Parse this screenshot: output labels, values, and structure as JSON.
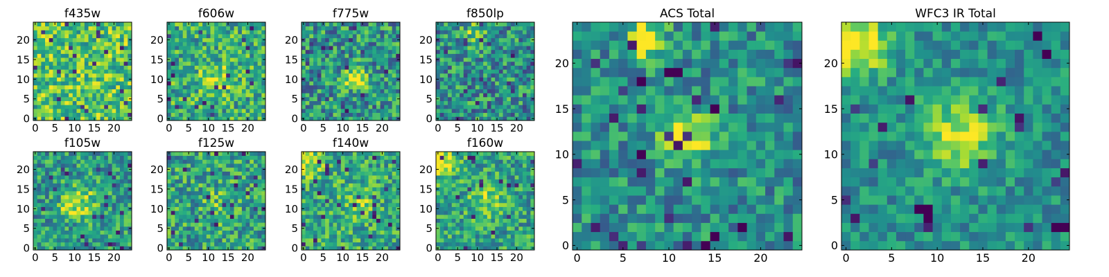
{
  "chart_data": [
    {
      "type": "heatmap",
      "title": "f435w",
      "xticks": [
        "0",
        "5",
        "10",
        "15",
        "20"
      ],
      "yticks": [
        "0",
        "5",
        "10",
        "15",
        "20"
      ],
      "xlim": [
        0,
        25
      ],
      "ylim": [
        0,
        25
      ],
      "grid": "25x25",
      "colormap": "viridis"
    },
    {
      "type": "heatmap",
      "title": "f606w",
      "xticks": [
        "0",
        "5",
        "10",
        "15",
        "20"
      ],
      "yticks": [
        "0",
        "5",
        "10",
        "15",
        "20"
      ],
      "xlim": [
        0,
        25
      ],
      "ylim": [
        0,
        25
      ],
      "grid": "25x25",
      "colormap": "viridis"
    },
    {
      "type": "heatmap",
      "title": "f775w",
      "xticks": [
        "0",
        "5",
        "10",
        "15",
        "20"
      ],
      "yticks": [
        "0",
        "5",
        "10",
        "15",
        "20"
      ],
      "xlim": [
        0,
        25
      ],
      "ylim": [
        0,
        25
      ],
      "grid": "25x25",
      "colormap": "viridis"
    },
    {
      "type": "heatmap",
      "title": "f850lp",
      "xticks": [
        "0",
        "5",
        "10",
        "15",
        "20"
      ],
      "yticks": [
        "0",
        "5",
        "10",
        "15",
        "20"
      ],
      "xlim": [
        0,
        25
      ],
      "ylim": [
        0,
        25
      ],
      "grid": "25x25",
      "colormap": "viridis"
    },
    {
      "type": "heatmap",
      "title": "f105w",
      "xticks": [
        "0",
        "5",
        "10",
        "15",
        "20"
      ],
      "yticks": [
        "0",
        "5",
        "10",
        "15",
        "20"
      ],
      "xlim": [
        0,
        25
      ],
      "ylim": [
        0,
        25
      ],
      "grid": "25x25",
      "colormap": "viridis"
    },
    {
      "type": "heatmap",
      "title": "f125w",
      "xticks": [
        "0",
        "5",
        "10",
        "15",
        "20"
      ],
      "yticks": [
        "0",
        "5",
        "10",
        "15",
        "20"
      ],
      "xlim": [
        0,
        25
      ],
      "ylim": [
        0,
        25
      ],
      "grid": "25x25",
      "colormap": "viridis"
    },
    {
      "type": "heatmap",
      "title": "f140w",
      "xticks": [
        "0",
        "5",
        "10",
        "15",
        "20"
      ],
      "yticks": [
        "0",
        "5",
        "10",
        "15",
        "20"
      ],
      "xlim": [
        0,
        25
      ],
      "ylim": [
        0,
        25
      ],
      "grid": "25x25",
      "colormap": "viridis"
    },
    {
      "type": "heatmap",
      "title": "f160w",
      "xticks": [
        "0",
        "5",
        "10",
        "15",
        "20"
      ],
      "yticks": [
        "0",
        "5",
        "10",
        "15",
        "20"
      ],
      "xlim": [
        0,
        25
      ],
      "ylim": [
        0,
        25
      ],
      "grid": "25x25",
      "colormap": "viridis"
    },
    {
      "type": "heatmap",
      "title": "ACS Total",
      "xticks": [
        "0",
        "5",
        "10",
        "15",
        "20"
      ],
      "yticks": [
        "0",
        "5",
        "10",
        "15",
        "20"
      ],
      "xlim": [
        0,
        25
      ],
      "ylim": [
        0,
        25
      ],
      "grid": "25x25",
      "colormap": "viridis"
    },
    {
      "type": "heatmap",
      "title": "WFC3 IR Total",
      "xticks": [
        "0",
        "5",
        "10",
        "15",
        "20"
      ],
      "yticks": [
        "0",
        "5",
        "10",
        "15",
        "20"
      ],
      "xlim": [
        0,
        25
      ],
      "ylim": [
        0,
        25
      ],
      "grid": "25x25",
      "colormap": "viridis"
    }
  ]
}
